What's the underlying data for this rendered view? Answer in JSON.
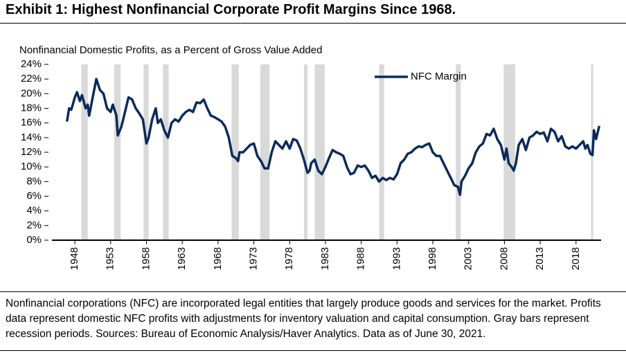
{
  "chart_data": {
    "type": "line",
    "title": "Exhibit 1: Highest Nonfinancial Corporate Profit Margins Since 1968.",
    "subtitle": "Nonfinancial Domestic Profits, as a Percent of Gross Value Added",
    "footnote": "Nonfinancial corporations (NFC) are incorporated legal entities that largely produce goods and services for the market. Profits data represent domestic NFC profits with adjustments for inventory valuation and capital consumption. Gray bars represent recession periods. Sources: Bureau of Economic Analysis/Haver Analytics. Data as of June 30, 2021.",
    "x": [
      1946.9,
      1947.2,
      1947.5,
      1948,
      1948.3,
      1948.7,
      1949,
      1949.5,
      1949.8,
      1950,
      1950.5,
      1951,
      1951.5,
      1952,
      1952.5,
      1953,
      1953.3,
      1953.8,
      1954,
      1954.5,
      1955,
      1955.5,
      1956,
      1956.5,
      1957,
      1957.5,
      1958,
      1958.3,
      1958.8,
      1959.3,
      1959.6,
      1960,
      1960.5,
      1961,
      1961.5,
      1962,
      1962.5,
      1963,
      1963.5,
      1964,
      1964.5,
      1965,
      1965.5,
      1966,
      1966.5,
      1967,
      1967.5,
      1968,
      1968.5,
      1969,
      1969.5,
      1970,
      1970.5,
      1970.8,
      1971,
      1971.5,
      1972,
      1972.5,
      1973,
      1973.5,
      1974,
      1974.5,
      1975,
      1975.5,
      1976,
      1976.5,
      1977,
      1977.5,
      1978,
      1978.5,
      1979,
      1979.5,
      1980,
      1980.5,
      1980.8,
      1981,
      1981.5,
      1982,
      1982.5,
      1983,
      1983.5,
      1984,
      1984.5,
      1985,
      1985.5,
      1986,
      1986.5,
      1987,
      1987.5,
      1988,
      1988.5,
      1989,
      1989.5,
      1990,
      1990.5,
      1991,
      1991.5,
      1992,
      1992.5,
      1993,
      1993.5,
      1994,
      1994.5,
      1995,
      1995.5,
      1996,
      1996.5,
      1997,
      1997.5,
      1998,
      1998.5,
      1999,
      1999.5,
      2000,
      2000.5,
      2001,
      2001.5,
      2001.8,
      2002,
      2002.5,
      2003,
      2003.5,
      2004,
      2004.5,
      2005,
      2005.5,
      2006,
      2006.5,
      2007,
      2007.5,
      2008,
      2008.3,
      2008.6,
      2009,
      2009.3,
      2009.6,
      2010,
      2010.5,
      2011,
      2011.5,
      2012,
      2012.5,
      2013,
      2013.5,
      2014,
      2014.5,
      2015,
      2015.5,
      2016,
      2016.5,
      2017,
      2017.5,
      2018,
      2018.5,
      2019,
      2019.3,
      2019.6,
      2020,
      2020.3,
      2020.5,
      2020.8,
      2021.25
    ],
    "series": [
      {
        "name": "NFC Margin",
        "color": "#0b2a5b",
        "values": [
          16.2,
          18,
          17.8,
          19.5,
          20.2,
          19,
          19.8,
          18,
          18.5,
          17,
          19.5,
          22,
          20.5,
          20,
          18,
          17.5,
          18.5,
          17,
          14.3,
          15.5,
          17.5,
          19.5,
          19.2,
          18,
          17.3,
          16.5,
          13.2,
          14,
          16.5,
          18,
          16,
          16.5,
          15,
          14,
          16,
          16.5,
          16.2,
          17,
          17.5,
          17.8,
          17.5,
          18.8,
          18.7,
          19.2,
          18,
          17,
          16.8,
          16.5,
          16.2,
          15.5,
          14,
          11.5,
          11.2,
          10.8,
          12,
          12,
          12.5,
          13,
          13.2,
          11.5,
          10.8,
          9.8,
          9.8,
          12,
          13.5,
          13,
          12.5,
          13.5,
          12.5,
          13.8,
          13.6,
          12.5,
          11,
          9.2,
          9.5,
          10.5,
          11,
          9.5,
          9,
          10,
          11.2,
          12.3,
          12,
          11.8,
          11.5,
          10,
          9,
          9.2,
          10.2,
          10,
          10.2,
          9.5,
          8.5,
          8.8,
          8,
          8.5,
          8.2,
          8.5,
          8.3,
          9,
          10.5,
          11,
          11.8,
          12,
          12.5,
          12.8,
          12.7,
          13,
          13.2,
          12,
          11.5,
          11.5,
          10.5,
          9.5,
          8.5,
          7.5,
          7.3,
          6.2,
          8,
          8.8,
          9.8,
          10.5,
          12,
          12.8,
          13.2,
          14.5,
          14.3,
          15.2,
          13.8,
          13,
          11,
          12.5,
          10.5,
          10,
          9.5,
          10.5,
          13,
          13.8,
          12.3,
          14,
          14.3,
          14.8,
          14.5,
          14.7,
          13.5,
          15.2,
          14.8,
          13.5,
          14.2,
          12.8,
          12.5,
          12.8,
          12.5,
          13,
          13.5,
          12.5,
          13,
          11.8,
          11.6,
          15,
          13.8,
          15.6
        ]
      }
    ],
    "recessions": [
      [
        1948.9,
        1949.8
      ],
      [
        1953.5,
        1954.4
      ],
      [
        1957.6,
        1958.3
      ],
      [
        1960.3,
        1961.1
      ],
      [
        1969.9,
        1970.9
      ],
      [
        1973.9,
        1975.2
      ],
      [
        1980,
        1980.5
      ],
      [
        1981.5,
        1982.9
      ],
      [
        1990.5,
        1991.2
      ],
      [
        2001.2,
        2001.9
      ],
      [
        2007.9,
        2009.5
      ],
      [
        2020.1,
        2020.4
      ]
    ],
    "recession_color": "#d9d9d9",
    "xlim": [
      1944.8,
      2021.5
    ],
    "xticks": [
      1948,
      1953,
      1958,
      1963,
      1968,
      1973,
      1978,
      1983,
      1988,
      1993,
      1998,
      2003,
      2008,
      2013,
      2018
    ],
    "ylim": [
      0,
      24
    ],
    "yticks": [
      {
        "value": 0,
        "label": "0%"
      },
      {
        "value": 2,
        "label": "2%"
      },
      {
        "value": 4,
        "label": "4%"
      },
      {
        "value": 6,
        "label": "6%"
      },
      {
        "value": 8,
        "label": "8%"
      },
      {
        "value": 10,
        "label": "10%"
      },
      {
        "value": 12,
        "label": "12%"
      },
      {
        "value": 14,
        "label": "14%"
      },
      {
        "value": 16,
        "label": "16%"
      },
      {
        "value": 18,
        "label": "18%"
      },
      {
        "value": 20,
        "label": "20%"
      },
      {
        "value": 22,
        "label": "22%"
      },
      {
        "value": 24,
        "label": "24%"
      }
    ],
    "grid": false,
    "legend": "top-center"
  }
}
